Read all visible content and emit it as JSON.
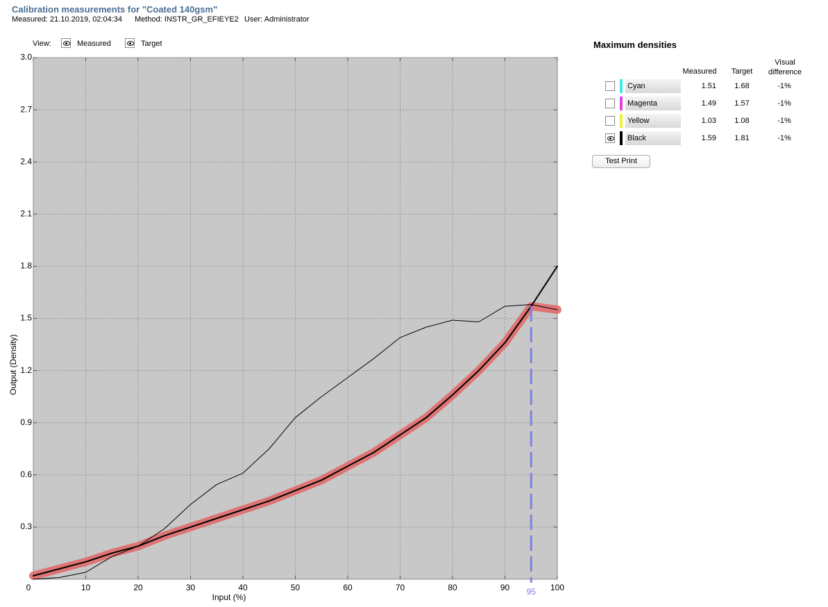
{
  "header": {
    "title": "Calibration measurements for \"Coated 140gsm\"",
    "meta": [
      "Measured: 21.10.2019, 02:04:34",
      "Method: INSTR_GR_EFIEYE2",
      "User: Administrator"
    ]
  },
  "view": {
    "label": "View:"
  },
  "chart_data": {
    "type": "line",
    "x_label": "Input (%)",
    "y_label": "Output (Density)",
    "x": [
      0,
      5,
      10,
      15,
      20,
      25,
      30,
      35,
      40,
      45,
      50,
      55,
      60,
      65,
      70,
      75,
      80,
      85,
      90,
      95,
      100
    ],
    "series": [
      {
        "color": "#e06a6a",
        "line_width": 12,
        "values": [
          0.02,
          0.06,
          0.1,
          0.15,
          0.19,
          0.25,
          0.3,
          0.35,
          0.4,
          0.45,
          0.51,
          0.57,
          0.65,
          0.73,
          0.83,
          0.93,
          1.06,
          1.2,
          1.36,
          1.57,
          1.55
        ]
      },
      {
        "name": "Target",
        "color": "#000000",
        "line_width": 2,
        "values": [
          0.02,
          0.06,
          0.1,
          0.15,
          0.19,
          0.25,
          0.3,
          0.35,
          0.4,
          0.45,
          0.51,
          0.57,
          0.65,
          0.73,
          0.83,
          0.93,
          1.06,
          1.2,
          1.36,
          1.57,
          1.8
        ]
      },
      {
        "name": "Measured",
        "color": "#000000",
        "line_width": 1,
        "values": [
          0,
          0.01,
          0.04,
          0.13,
          0.19,
          0.29,
          0.43,
          0.545,
          0.61,
          0.75,
          0.93,
          1.05,
          1.16,
          1.27,
          1.39,
          1.45,
          1.49,
          1.48,
          1.57,
          1.58,
          1.55
        ]
      }
    ],
    "xlim": [
      0,
      100
    ],
    "xticks": [
      0,
      10,
      20,
      30,
      40,
      50,
      60,
      70,
      80,
      90,
      100
    ],
    "ylim": [
      0,
      3
    ],
    "yticks": [
      0.3,
      0.6,
      0.9,
      1.2,
      1.5,
      1.8,
      2.1,
      2.4,
      2.7,
      {
        "value": 3,
        "label": "3.0"
      }
    ],
    "grid": true,
    "marker_x": 95,
    "marker_color": "#8080e0"
  },
  "densities": {
    "title": "Maximum densities",
    "columns": [
      "Measured",
      "Target",
      "Visual difference"
    ],
    "rows": [
      {
        "name": "Cyan",
        "color": "#40e8e8",
        "visible": false,
        "measured": "1.51",
        "target": "1.68",
        "difference": "-1%"
      },
      {
        "name": "Magenta",
        "color": "#e040e0",
        "visible": false,
        "measured": "1.49",
        "target": "1.57",
        "difference": "-1%"
      },
      {
        "name": "Yellow",
        "color": "#f0f040",
        "visible": false,
        "measured": "1.03",
        "target": "1.08",
        "difference": "-1%"
      },
      {
        "name": "Black",
        "color": "#000000",
        "visible": true,
        "measured": "1.59",
        "target": "1.81",
        "difference": "-1%"
      }
    ],
    "button": "Test Print"
  }
}
